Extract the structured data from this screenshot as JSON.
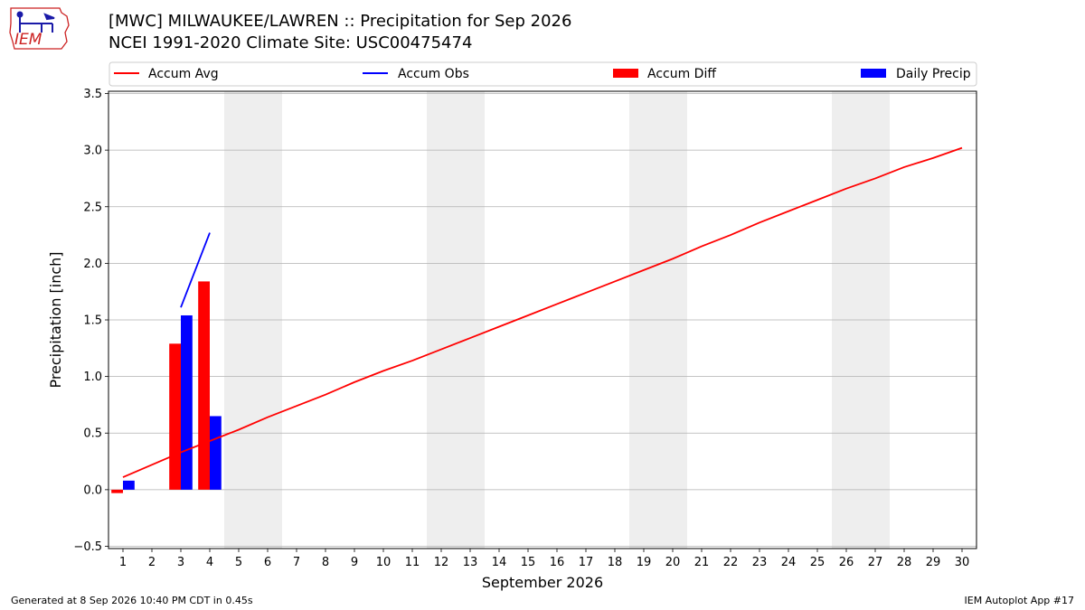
{
  "header": {
    "title_line1": "[MWC] MILWAUKEE/LAWREN :: Precipitation for Sep 2026",
    "title_line2": "NCEI 1991-2020 Climate Site: USC00475474"
  },
  "logo": {
    "text": "IEM",
    "icon": "iem-iowa-logo-icon",
    "color": "#cc2222"
  },
  "footer": {
    "left": "Generated at 8 Sep 2026 10:40 PM CDT in 0.45s",
    "right": "IEM Autoplot App #17"
  },
  "chart_data": {
    "type": "bar",
    "xlabel": "September 2026",
    "ylabel": "Precipitation [inch]",
    "xlim": [
      0.5,
      30.5
    ],
    "ylim": [
      -0.52,
      3.52
    ],
    "yticks": [
      -0.5,
      0.0,
      0.5,
      1.0,
      1.5,
      2.0,
      2.5,
      3.0,
      3.5
    ],
    "ytick_labels": [
      "−0.5",
      "0.0",
      "0.5",
      "1.0",
      "1.5",
      "2.0",
      "2.5",
      "3.0",
      "3.5"
    ],
    "xticks": [
      1,
      2,
      3,
      4,
      5,
      6,
      7,
      8,
      9,
      10,
      11,
      12,
      13,
      14,
      15,
      16,
      17,
      18,
      19,
      20,
      21,
      22,
      23,
      24,
      25,
      26,
      27,
      28,
      29,
      30
    ],
    "grid": "horizontal",
    "legend_position": "top",
    "weekend_shading": [
      [
        4.5,
        6.5
      ],
      [
        11.5,
        13.5
      ],
      [
        18.5,
        20.5
      ],
      [
        25.5,
        27.5
      ]
    ],
    "shading_color": "#eeeeee",
    "legend": [
      {
        "name": "Accum Avg",
        "kind": "line",
        "color": "#ff0000"
      },
      {
        "name": "Accum Obs",
        "kind": "line",
        "color": "#0000ff"
      },
      {
        "name": "Accum Diff",
        "kind": "bar",
        "color": "#ff0000"
      },
      {
        "name": "Daily Precip",
        "kind": "bar",
        "color": "#0000ff"
      }
    ],
    "series": [
      {
        "name": "Accum Avg",
        "kind": "line",
        "color": "#ff0000",
        "x": [
          1,
          2,
          3,
          4,
          5,
          6,
          7,
          8,
          9,
          10,
          11,
          12,
          13,
          14,
          15,
          16,
          17,
          18,
          19,
          20,
          21,
          22,
          23,
          24,
          25,
          26,
          27,
          28,
          29,
          30
        ],
        "values": [
          0.11,
          0.22,
          0.33,
          0.43,
          0.53,
          0.64,
          0.74,
          0.84,
          0.95,
          1.05,
          1.14,
          1.24,
          1.34,
          1.44,
          1.54,
          1.64,
          1.74,
          1.84,
          1.94,
          2.04,
          2.15,
          2.25,
          2.36,
          2.46,
          2.56,
          2.66,
          2.75,
          2.85,
          2.93,
          3.02
        ]
      },
      {
        "name": "Accum Obs",
        "kind": "line",
        "color": "#0000ff",
        "x": [
          3,
          4
        ],
        "values": [
          1.61,
          2.27
        ]
      },
      {
        "name": "Accum Diff",
        "kind": "bar",
        "color": "#ff0000",
        "x": [
          1,
          3,
          4
        ],
        "values": [
          -0.03,
          1.29,
          1.84
        ]
      },
      {
        "name": "Daily Precip",
        "kind": "bar",
        "color": "#0000ff",
        "x": [
          1,
          3,
          4
        ],
        "values": [
          0.08,
          1.54,
          0.65
        ]
      }
    ]
  }
}
